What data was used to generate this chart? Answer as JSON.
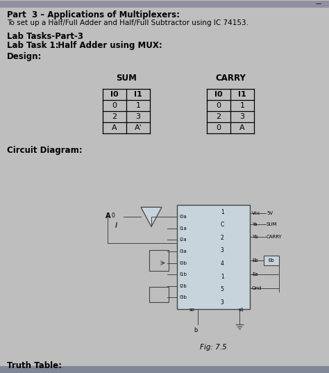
{
  "title_line1": "Part  3 – Applications of Multiplexers:",
  "title_line2": "To set up a Half/Full Adder and Half/Full Subtractor using IC 74153.",
  "section_title": "Lab Tasks-Part-3",
  "lab_task_label": "Lab Task 1:",
  "lab_task_desc": "  Half Adder using MUX:",
  "design_label": "Design:",
  "sum_title": "SUM",
  "carry_title": "CARRY",
  "col1_header": "I0",
  "col2_header": "I1",
  "sum_rows": [
    [
      "0",
      "1"
    ],
    [
      "2",
      "3"
    ],
    [
      "A",
      "A'"
    ]
  ],
  "carry_rows": [
    [
      "0",
      "1"
    ],
    [
      "2",
      "3"
    ],
    [
      "0",
      "A"
    ]
  ],
  "circuit_label": "Circuit Diagram:",
  "fig_label": "Fig: 7.5",
  "truth_table_label": "Truth Table:",
  "bg_color": "#bebebe",
  "top_bar_color": "#9090a0",
  "bot_bar_color": "#808898",
  "ic_face_color": "#c8d4dc",
  "left_pins": [
    "I0a",
    "I1a",
    "I2a",
    "I3a",
    "I0b",
    "I1b",
    "I2b",
    "I3b"
  ],
  "right_pins_top": [
    "Vcc",
    "Ya",
    "Yb"
  ],
  "right_pins_bot": [
    "Eb",
    "Ea",
    "Gnd"
  ],
  "right_labels": [
    "5V",
    "SUM",
    "CARRY"
  ],
  "ic_center_chars": [
    "1",
    "C",
    "2",
    "3",
    "4",
    "1",
    "5",
    "3"
  ],
  "so_label": "so",
  "s1_label": "s1",
  "b_label": "b",
  "a_label": "A",
  "a_superscript": "0",
  "i_label": "I"
}
